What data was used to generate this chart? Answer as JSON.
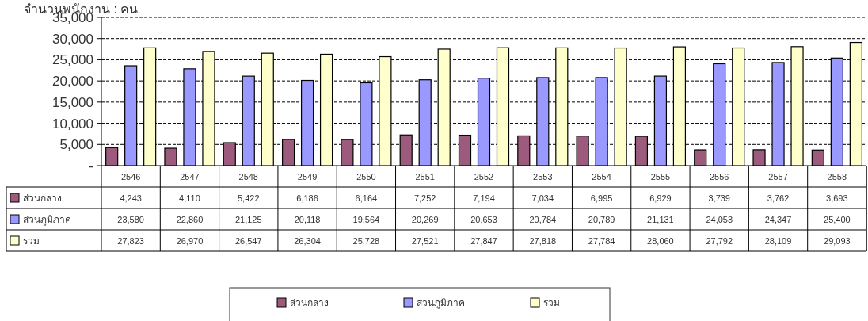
{
  "chart_data": {
    "type": "bar",
    "title": "จำนวนพนักงาน : คน",
    "categories": [
      "2546",
      "2547",
      "2548",
      "2549",
      "2550",
      "2551",
      "2552",
      "2553",
      "2554",
      "2555",
      "2556",
      "2557",
      "2558"
    ],
    "series": [
      {
        "name": "ส่วนกลาง",
        "color": "#9c5a7c",
        "values": [
          4243,
          4110,
          5422,
          6186,
          6164,
          7252,
          7194,
          7034,
          6995,
          6929,
          3739,
          3762,
          3693
        ],
        "value_labels": [
          "4,243",
          "4,110",
          "5,422",
          "6,186",
          "6,164",
          "7,252",
          "7,194",
          "7,034",
          "6,995",
          "6,929",
          "3,739",
          "3,762",
          "3,693"
        ]
      },
      {
        "name": "ส่วนภูมิภาค",
        "color": "#9999ff",
        "values": [
          23580,
          22860,
          21125,
          20118,
          19564,
          20269,
          20653,
          20784,
          20789,
          21131,
          24053,
          24347,
          25400
        ],
        "value_labels": [
          "23,580",
          "22,860",
          "21,125",
          "20,118",
          "19,564",
          "20,269",
          "20,653",
          "20,784",
          "20,789",
          "21,131",
          "24,053",
          "24,347",
          "25,400"
        ]
      },
      {
        "name": "รวม",
        "color": "#ffffcc",
        "values": [
          27823,
          26970,
          26547,
          26304,
          25728,
          27521,
          27847,
          27818,
          27784,
          28060,
          27792,
          28109,
          29093
        ],
        "value_labels": [
          "27,823",
          "26,970",
          "26,547",
          "26,304",
          "25,728",
          "27,521",
          "27,847",
          "27,818",
          "27,784",
          "28,060",
          "27,792",
          "28,109",
          "29,093"
        ]
      }
    ],
    "ylim": [
      0,
      35000
    ],
    "yticks": [
      {
        "value": 0,
        "label": "-"
      },
      {
        "value": 5000,
        "label": "5,000"
      },
      {
        "value": 10000,
        "label": "10,000"
      },
      {
        "value": 15000,
        "label": "15,000"
      },
      {
        "value": 20000,
        "label": "20,000"
      },
      {
        "value": 25000,
        "label": "25,000"
      },
      {
        "value": 30000,
        "label": "30,000"
      },
      {
        "value": 35000,
        "label": "35,000"
      }
    ],
    "grid": "y",
    "line_style": "dashed",
    "legend": "bottom"
  }
}
